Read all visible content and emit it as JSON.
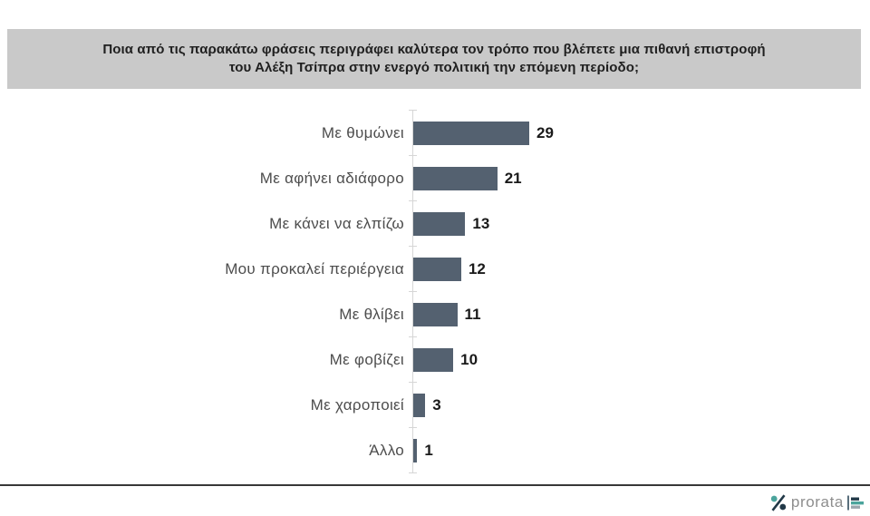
{
  "question_banner": {
    "background": "#c9c9c9",
    "text_color": "#1f1f1f",
    "line1": "Ποια από τις παρακάτω φράσεις περιγράφει καλύτερα τον τρόπο που βλέπετε μια πιθανή επιστροφή",
    "line2": "του Αλέξη Τσίπρα στην ενεργό πολιτική την επόμενη περίοδο;"
  },
  "chart_data": {
    "type": "bar",
    "orientation": "horizontal",
    "categories": [
      "Με θυμώνει",
      "Με αφήνει αδιάφορο",
      "Με κάνει να ελπίζω",
      "Μου προκαλεί περιέργεια",
      "Με θλίβει",
      "Με φοβίζει",
      "Με χαροποιεί",
      "Άλλο"
    ],
    "values": [
      29,
      21,
      13,
      12,
      11,
      10,
      3,
      1
    ],
    "xlim": [
      0,
      32
    ],
    "grid": false,
    "legend": false,
    "data_labels": true,
    "bar_color": "#546170",
    "category_label_color": "#4d4d4d",
    "value_label_color": "#1a1a1a",
    "axis_color": "#d6d6d6"
  },
  "footer": {
    "divider_color": "#383838",
    "logo": {
      "percent_icon": "percent-icon",
      "brand_text": "prorata",
      "mini_chart_icon": "mini-barchart-icon",
      "brand_text_color": "#8e8e8e",
      "teal": "#4BA49C",
      "navy": "#223948",
      "gray_bar": "#9aa6ad"
    }
  }
}
